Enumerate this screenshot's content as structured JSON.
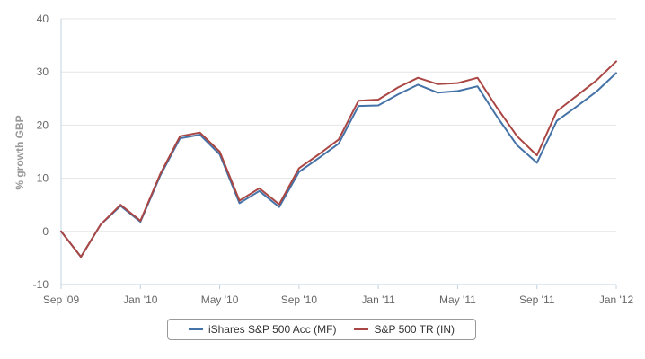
{
  "chart_data": {
    "type": "line",
    "title": "",
    "xlabel": "",
    "ylabel": "% growth GBP",
    "ylim": [
      -10,
      40
    ],
    "yticks": [
      -10,
      0,
      10,
      20,
      30,
      40
    ],
    "xlim": [
      "2009-09",
      "2012-01"
    ],
    "xticks": [
      {
        "date": "2009-09",
        "label": "Sep '09"
      },
      {
        "date": "2010-01",
        "label": "Jan '10"
      },
      {
        "date": "2010-05",
        "label": "May '10"
      },
      {
        "date": "2010-09",
        "label": "Sep '10"
      },
      {
        "date": "2011-01",
        "label": "Jan '11"
      },
      {
        "date": "2011-05",
        "label": "May '11"
      },
      {
        "date": "2011-09",
        "label": "Sep '11"
      },
      {
        "date": "2012-01",
        "label": "Jan '12"
      }
    ],
    "grid": true,
    "legend_position": "bottom",
    "x": [
      "2009-09",
      "2009-10",
      "2009-11",
      "2009-12",
      "2010-01",
      "2010-02",
      "2010-03",
      "2010-04",
      "2010-05",
      "2010-06",
      "2010-07",
      "2010-08",
      "2010-09",
      "2010-10",
      "2010-11",
      "2010-12",
      "2011-01",
      "2011-02",
      "2011-03",
      "2011-04",
      "2011-05",
      "2011-06",
      "2011-07",
      "2011-08",
      "2011-09",
      "2011-10",
      "2011-11",
      "2011-12",
      "2012-01"
    ],
    "series": [
      {
        "name": "iShares S&P 500 Acc (MF)",
        "color": "#4572a7",
        "values": [
          0,
          -4.8,
          1.3,
          4.8,
          1.8,
          10.5,
          17.5,
          18.2,
          14.5,
          5.3,
          7.6,
          4.6,
          11.2,
          13.8,
          16.5,
          23.6,
          23.7,
          25.8,
          27.6,
          26.1,
          26.4,
          27.3,
          21.5,
          16.2,
          12.9,
          20.8,
          23.5,
          26.3,
          29.8
        ]
      },
      {
        "name": "S&P 500 TR (IN)",
        "color": "#aa4643",
        "values": [
          0,
          -4.8,
          1.3,
          5.0,
          2.0,
          10.8,
          17.9,
          18.6,
          15.0,
          5.8,
          8.1,
          5.1,
          11.9,
          14.5,
          17.3,
          24.6,
          24.8,
          27.1,
          28.9,
          27.7,
          27.9,
          28.9,
          23.2,
          17.9,
          14.3,
          22.6,
          25.5,
          28.4,
          32.0
        ]
      }
    ]
  }
}
